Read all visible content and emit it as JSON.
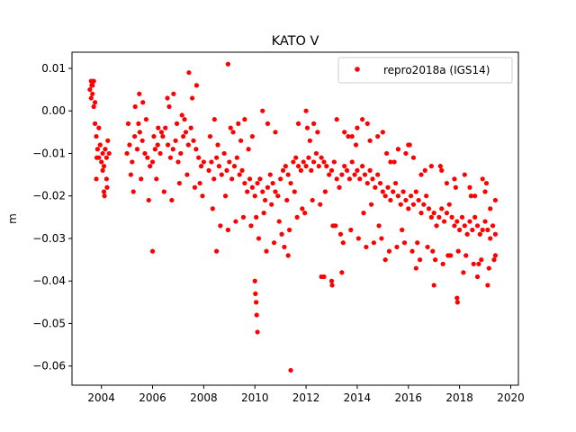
{
  "chart_data": {
    "type": "scatter",
    "title": "KATO V",
    "xlabel": "",
    "ylabel": "m",
    "xlim": [
      2002.85,
      2020.3
    ],
    "ylim": [
      -0.0645,
      0.0138
    ],
    "x_ticks": [
      2004,
      2006,
      2008,
      2010,
      2012,
      2014,
      2016,
      2018,
      2020
    ],
    "x_tick_labels": [
      "2004",
      "2006",
      "2008",
      "2010",
      "2012",
      "2014",
      "2016",
      "2018",
      "2020"
    ],
    "y_ticks": [
      0.01,
      0.0,
      -0.01,
      -0.02,
      -0.03,
      -0.04,
      -0.05,
      -0.06
    ],
    "y_tick_labels": [
      "0.01",
      "0.00",
      "−0.01",
      "−0.02",
      "−0.03",
      "−0.04",
      "−0.05",
      "−0.06"
    ],
    "legend_position": "top-right",
    "grid": false,
    "series": [
      {
        "name": "repro2018a (IGS14)",
        "color": "#ff0000",
        "marker": "circle",
        "x": [
          2003.55,
          2003.6,
          2003.65,
          2003.7,
          2003.75,
          2003.8,
          2003.85,
          2003.9,
          2003.95,
          2004.0,
          2004.05,
          2004.1,
          2004.15,
          2004.2,
          2004.25,
          2004.3,
          2005.0,
          2005.1,
          2005.2,
          2005.3,
          2005.4,
          2005.5,
          2005.6,
          2005.7,
          2005.8,
          2005.9,
          2006.0,
          2006.1,
          2006.2,
          2006.3,
          2006.4,
          2006.5,
          2006.6,
          2006.7,
          2006.8,
          2006.9,
          2007.0,
          2007.1,
          2007.2,
          2007.3,
          2007.4,
          2007.5,
          2007.6,
          2007.7,
          2007.8,
          2007.9,
          2008.0,
          2008.2,
          2008.3,
          2008.4,
          2008.5,
          2008.6,
          2008.7,
          2008.8,
          2008.9,
          2009.0,
          2009.1,
          2009.2,
          2009.3,
          2009.4,
          2009.5,
          2009.6,
          2009.7,
          2009.8,
          2009.9,
          2010.0,
          2010.1,
          2010.2,
          2010.3,
          2010.4,
          2010.5,
          2010.6,
          2010.7,
          2010.8,
          2010.9,
          2011.0,
          2011.1,
          2011.2,
          2011.3,
          2011.4,
          2011.5,
          2011.6,
          2011.7,
          2011.8,
          2011.9,
          2012.0,
          2012.1,
          2012.2,
          2012.3,
          2012.4,
          2012.5,
          2012.6,
          2012.7,
          2012.8,
          2012.9,
          2013.0,
          2013.1,
          2013.2,
          2013.3,
          2013.4,
          2013.5,
          2013.6,
          2013.7,
          2013.8,
          2013.9,
          2014.0,
          2014.1,
          2014.2,
          2014.3,
          2014.4,
          2014.5,
          2014.6,
          2014.7,
          2014.8,
          2014.9,
          2015.0,
          2015.1,
          2015.2,
          2015.3,
          2015.4,
          2015.5,
          2015.6,
          2015.7,
          2015.8,
          2015.9,
          2016.0,
          2016.1,
          2016.2,
          2016.3,
          2016.4,
          2016.5,
          2016.6,
          2016.7,
          2016.8,
          2016.9,
          2017.0,
          2017.1,
          2017.2,
          2017.3,
          2017.4,
          2017.5,
          2017.6,
          2017.7,
          2017.8,
          2017.9,
          2018.0,
          2018.1,
          2018.2,
          2018.3,
          2018.4,
          2018.5,
          2018.6,
          2018.7,
          2018.8,
          2018.9,
          2019.0,
          2019.1,
          2019.2,
          2019.3,
          2019.4,
          2003.6,
          2003.75,
          2003.9,
          2004.05,
          2004.2,
          2005.15,
          2005.45,
          2005.75,
          2006.05,
          2006.35,
          2006.65,
          2006.95,
          2007.25,
          2007.55,
          2007.85,
          2008.25,
          2008.55,
          2008.85,
          2009.15,
          2009.45,
          2009.75,
          2010.05,
          2010.35,
          2010.65,
          2010.95,
          2011.25,
          2011.55,
          2011.85,
          2012.15,
          2012.45,
          2012.75,
          2013.05,
          2013.35,
          2013.65,
          2013.95,
          2014.25,
          2014.55,
          2014.85,
          2015.15,
          2015.45,
          2015.75,
          2016.05,
          2016.35,
          2016.65,
          2016.95,
          2017.25,
          2017.55,
          2017.85,
          2018.15,
          2018.45,
          2018.75,
          2019.05,
          2019.35,
          2003.65,
          2003.8,
          2004.1,
          2005.25,
          2005.55,
          2005.85,
          2006.15,
          2006.45,
          2006.75,
          2007.05,
          2007.35,
          2007.65,
          2007.95,
          2008.35,
          2008.65,
          2008.95,
          2009.25,
          2009.55,
          2009.85,
          2010.15,
          2010.45,
          2010.75,
          2011.05,
          2011.35,
          2011.65,
          2011.95,
          2012.25,
          2012.55,
          2013.15,
          2013.45,
          2013.75,
          2014.05,
          2014.35,
          2014.65,
          2014.95,
          2015.25,
          2015.55,
          2015.85,
          2016.15,
          2016.45,
          2016.75,
          2017.05,
          2017.35,
          2017.65,
          2017.95,
          2018.25,
          2018.55,
          2018.85,
          2019.15,
          2019.4,
          2003.62,
          2003.7,
          2003.82,
          2004.12,
          2004.22,
          2005.05,
          2005.32,
          2005.48,
          2005.62,
          2006.22,
          2006.58,
          2006.82,
          2007.15,
          2007.42,
          2007.72,
          2008.42,
          2008.95,
          2009.05,
          2009.35,
          2009.6,
          2009.9,
          2010.0,
          2010.02,
          2010.05,
          2010.07,
          2010.1,
          2010.3,
          2010.5,
          2010.8,
          2011.4,
          2011.15,
          2011.7,
          2012.0,
          2012.05,
          2012.3,
          2012.6,
          2013.0,
          2013.02,
          2013.2,
          2013.5,
          2013.8,
          2014.2,
          2014.0,
          2014.4,
          2014.5,
          2014.8,
          2015.0,
          2015.3,
          2015.6,
          2015.9,
          2016.0,
          2016.2,
          2016.5,
          2016.9,
          2017.0,
          2017.3,
          2017.5,
          2017.8,
          2017.9,
          2017.92,
          2018.2,
          2018.4,
          2018.6,
          2018.9,
          2019.0,
          2019.2,
          2019.4,
          2019.1,
          2018.7,
          2016.3,
          2015.1,
          2013.4,
          2012.7,
          2011.3,
          2008.5,
          2006.0
        ],
        "y": [
          0.005,
          0.003,
          0.006,
          0.001,
          -0.003,
          -0.006,
          -0.009,
          -0.011,
          -0.008,
          -0.012,
          -0.01,
          -0.013,
          -0.009,
          -0.011,
          -0.007,
          -0.01,
          -0.01,
          -0.008,
          -0.012,
          -0.006,
          -0.009,
          -0.005,
          -0.007,
          -0.01,
          -0.011,
          -0.013,
          -0.012,
          -0.009,
          -0.008,
          -0.01,
          -0.006,
          -0.004,
          -0.008,
          -0.011,
          -0.009,
          -0.007,
          -0.012,
          -0.01,
          -0.006,
          -0.005,
          -0.008,
          -0.004,
          -0.007,
          -0.009,
          -0.011,
          -0.013,
          -0.012,
          -0.014,
          -0.012,
          -0.016,
          -0.011,
          -0.013,
          -0.015,
          -0.01,
          -0.014,
          -0.012,
          -0.016,
          -0.013,
          -0.011,
          -0.015,
          -0.014,
          -0.017,
          -0.019,
          -0.016,
          -0.018,
          -0.02,
          -0.017,
          -0.016,
          -0.019,
          -0.021,
          -0.018,
          -0.015,
          -0.017,
          -0.019,
          -0.02,
          -0.016,
          -0.014,
          -0.013,
          -0.015,
          -0.017,
          -0.012,
          -0.011,
          -0.013,
          -0.014,
          -0.012,
          -0.013,
          -0.011,
          -0.014,
          -0.012,
          -0.01,
          -0.013,
          -0.011,
          -0.012,
          -0.013,
          -0.015,
          -0.014,
          -0.012,
          -0.016,
          -0.018,
          -0.015,
          -0.013,
          -0.014,
          -0.016,
          -0.012,
          -0.015,
          -0.014,
          -0.016,
          -0.013,
          -0.015,
          -0.017,
          -0.014,
          -0.016,
          -0.018,
          -0.015,
          -0.017,
          -0.019,
          -0.02,
          -0.018,
          -0.021,
          -0.019,
          -0.017,
          -0.02,
          -0.022,
          -0.019,
          -0.021,
          -0.023,
          -0.02,
          -0.022,
          -0.019,
          -0.021,
          -0.024,
          -0.022,
          -0.02,
          -0.023,
          -0.025,
          -0.024,
          -0.027,
          -0.025,
          -0.023,
          -0.026,
          -0.024,
          -0.022,
          -0.025,
          -0.027,
          -0.026,
          -0.028,
          -0.025,
          -0.027,
          -0.029,
          -0.026,
          -0.028,
          -0.025,
          -0.027,
          -0.029,
          -0.028,
          -0.026,
          -0.028,
          -0.03,
          -0.027,
          -0.029,
          0.007,
          0.002,
          -0.004,
          -0.014,
          -0.016,
          -0.015,
          -0.003,
          -0.002,
          -0.006,
          -0.005,
          0.001,
          -0.003,
          -0.002,
          0.003,
          -0.017,
          -0.006,
          -0.008,
          -0.02,
          -0.005,
          -0.007,
          -0.009,
          -0.025,
          -0.024,
          -0.022,
          -0.026,
          -0.021,
          -0.019,
          -0.023,
          -0.007,
          -0.005,
          -0.019,
          -0.027,
          -0.029,
          -0.006,
          -0.008,
          -0.024,
          -0.022,
          -0.027,
          -0.01,
          -0.012,
          -0.028,
          -0.008,
          -0.031,
          -0.014,
          -0.033,
          -0.013,
          -0.034,
          -0.018,
          -0.038,
          -0.02,
          -0.036,
          -0.017,
          -0.035,
          0.004,
          -0.016,
          -0.019,
          -0.019,
          -0.016,
          -0.021,
          -0.016,
          -0.019,
          -0.021,
          -0.017,
          -0.015,
          -0.018,
          -0.02,
          -0.023,
          -0.027,
          -0.028,
          -0.026,
          -0.025,
          -0.027,
          -0.03,
          -0.033,
          -0.031,
          -0.029,
          -0.028,
          -0.025,
          -0.024,
          -0.021,
          -0.022,
          -0.027,
          -0.031,
          -0.028,
          -0.03,
          -0.032,
          -0.031,
          -0.03,
          -0.033,
          -0.032,
          -0.031,
          -0.033,
          -0.035,
          -0.032,
          -0.035,
          -0.036,
          -0.034,
          -0.033,
          -0.034,
          -0.036,
          -0.035,
          -0.037,
          -0.034,
          0.006,
          0.007,
          -0.011,
          -0.02,
          -0.018,
          -0.003,
          0.001,
          0.004,
          0.002,
          -0.004,
          0.003,
          0.004,
          -0.001,
          0.009,
          0.006,
          -0.002,
          0.011,
          -0.004,
          -0.003,
          -0.002,
          -0.006,
          -0.04,
          -0.043,
          -0.045,
          -0.048,
          -0.052,
          0.0,
          -0.003,
          -0.005,
          -0.061,
          -0.032,
          -0.003,
          0.0,
          -0.004,
          -0.003,
          -0.039,
          -0.04,
          -0.041,
          -0.002,
          -0.005,
          -0.006,
          -0.002,
          -0.004,
          -0.003,
          -0.007,
          -0.006,
          -0.005,
          -0.012,
          -0.009,
          -0.01,
          -0.008,
          -0.011,
          -0.015,
          -0.013,
          -0.041,
          -0.014,
          -0.017,
          -0.016,
          -0.044,
          -0.045,
          -0.015,
          -0.018,
          -0.02,
          -0.016,
          -0.019,
          -0.023,
          -0.021,
          -0.041,
          -0.039,
          -0.037,
          -0.035,
          -0.038,
          -0.039,
          -0.034,
          -0.033,
          -0.033
        ]
      }
    ]
  }
}
